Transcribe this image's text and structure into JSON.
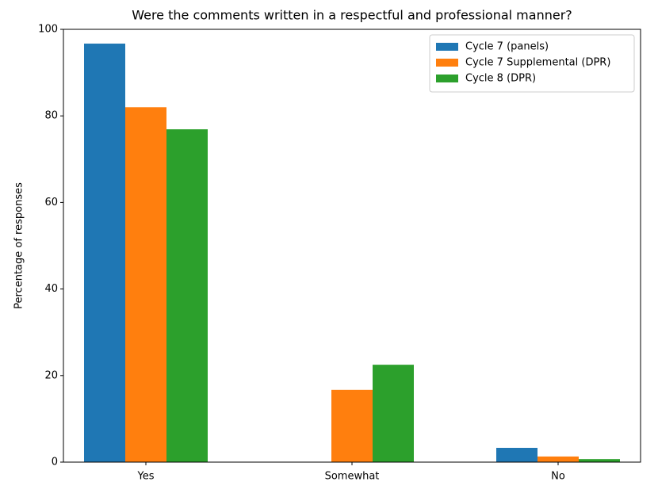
{
  "chart_data": {
    "type": "grouped_bar",
    "title": "Were the comments written in a respectful and professional manner?",
    "y_label": "Percentage of responses",
    "categories": [
      "Yes",
      "Somewhat",
      "No"
    ],
    "series": [
      {
        "name": "Cycle 7 (panels)",
        "color": "#1f77b4",
        "values": [
          96.7,
          0,
          3.3
        ]
      },
      {
        "name": "Cycle 7 Supplemental (DPR)",
        "color": "#ff7f0e",
        "values": [
          82.0,
          16.7,
          1.3
        ]
      },
      {
        "name": "Cycle 8 (DPR)",
        "color": "#2ca02c",
        "values": [
          76.9,
          22.5,
          0.7
        ]
      }
    ],
    "ylim": [
      0,
      100
    ],
    "yticks": [
      0,
      20,
      40,
      60,
      80,
      100
    ],
    "legend": "upper right"
  }
}
